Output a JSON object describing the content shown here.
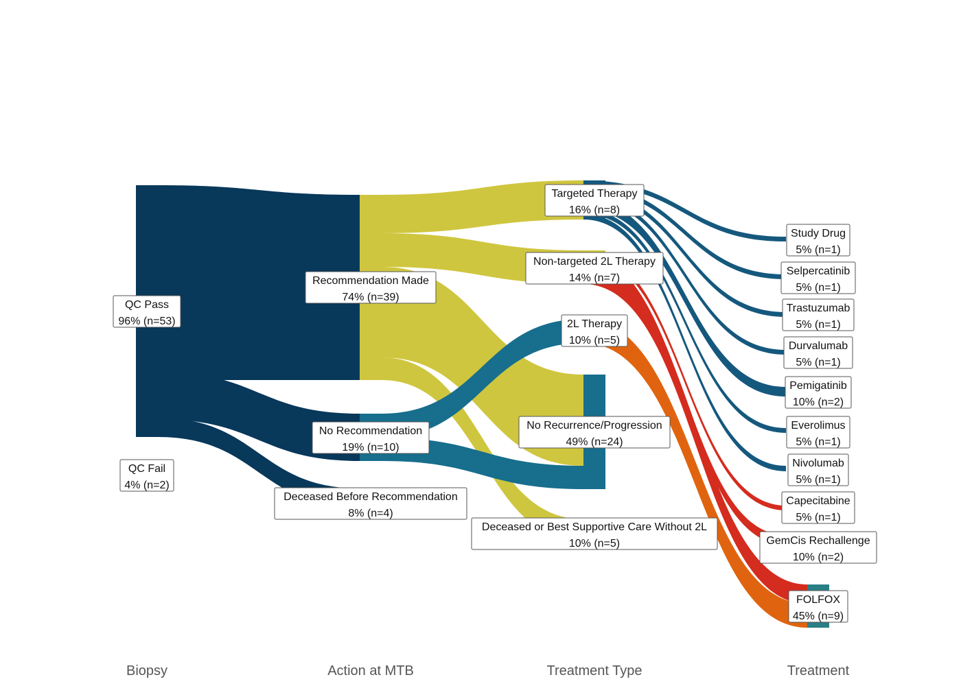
{
  "axis": {
    "biopsy": "Biopsy",
    "action": "Action at MTB",
    "treatment_type": "Treatment Type",
    "treatment": "Treatment"
  },
  "colors": {
    "navy": "#08385A",
    "olive": "#CFC63F",
    "teal": "#176E8D",
    "blue": "#15587E",
    "red": "#D42C1E",
    "orange": "#E0640F",
    "folfox_teal": "#2A7F86"
  },
  "nodes": {
    "qc_pass": {
      "line1": "QC Pass",
      "line2": "96% (n=53)"
    },
    "qc_fail": {
      "line1": "QC Fail",
      "line2": "4% (n=2)"
    },
    "rec_made": {
      "line1": "Recommendation Made",
      "line2": "74% (n=39)"
    },
    "no_rec": {
      "line1": "No Recommendation",
      "line2": "19% (n=10)"
    },
    "deceased_before": {
      "line1": "Deceased Before Recommendation",
      "line2": "8% (n=4)"
    },
    "targeted": {
      "line1": "Targeted Therapy",
      "line2": "16% (n=8)"
    },
    "nontargeted": {
      "line1": "Non-targeted 2L Therapy",
      "line2": "14% (n=7)"
    },
    "l2": {
      "line1": "2L Therapy",
      "line2": "10% (n=5)"
    },
    "no_recurrence": {
      "line1": "No Recurrence/Progression",
      "line2": "49% (n=24)"
    },
    "deceased_bsc": {
      "line1": "Deceased or Best Supportive Care Without 2L",
      "line2": "10% (n=5)"
    },
    "study_drug": {
      "line1": "Study Drug",
      "line2": "5% (n=1)"
    },
    "selpercatinib": {
      "line1": "Selpercatinib",
      "line2": "5% (n=1)"
    },
    "trastuzumab": {
      "line1": "Trastuzumab",
      "line2": "5% (n=1)"
    },
    "durvalumab": {
      "line1": "Durvalumab",
      "line2": "5% (n=1)"
    },
    "pemigatinib": {
      "line1": "Pemigatinib",
      "line2": "10% (n=2)"
    },
    "everolimus": {
      "line1": "Everolimus",
      "line2": "5% (n=1)"
    },
    "nivolumab": {
      "line1": "Nivolumab",
      "line2": "5% (n=1)"
    },
    "capecitabine": {
      "line1": "Capecitabine",
      "line2": "5% (n=1)"
    },
    "gemcis": {
      "line1": "GemCis Rechallenge",
      "line2": "10% (n=2)"
    },
    "folfox": {
      "line1": "FOLFOX",
      "line2": "45% (n=9)"
    }
  },
  "chart_data": {
    "type": "sankey",
    "stages": [
      "Biopsy",
      "Action at MTB",
      "Treatment Type",
      "Treatment"
    ],
    "flows": [
      {
        "from": "QC Pass",
        "to": "Recommendation Made",
        "value": 39
      },
      {
        "from": "QC Pass",
        "to": "No Recommendation",
        "value": 10
      },
      {
        "from": "QC Pass",
        "to": "Deceased Before Recommendation",
        "value": 4
      },
      {
        "from": "Recommendation Made",
        "to": "Targeted Therapy",
        "value": 8
      },
      {
        "from": "Recommendation Made",
        "to": "Non-targeted 2L Therapy",
        "value": 7
      },
      {
        "from": "Recommendation Made",
        "to": "No Recurrence/Progression",
        "value": 19
      },
      {
        "from": "Recommendation Made",
        "to": "Deceased or Best Supportive Care Without 2L",
        "value": 5
      },
      {
        "from": "No Recommendation",
        "to": "2L Therapy",
        "value": 5
      },
      {
        "from": "No Recommendation",
        "to": "No Recurrence/Progression",
        "value": 5
      },
      {
        "from": "Targeted Therapy",
        "to": "Study Drug",
        "value": 1
      },
      {
        "from": "Targeted Therapy",
        "to": "Selpercatinib",
        "value": 1
      },
      {
        "from": "Targeted Therapy",
        "to": "Trastuzumab",
        "value": 1
      },
      {
        "from": "Targeted Therapy",
        "to": "Durvalumab",
        "value": 1
      },
      {
        "from": "Targeted Therapy",
        "to": "Pemigatinib",
        "value": 2
      },
      {
        "from": "Targeted Therapy",
        "to": "Everolimus",
        "value": 1
      },
      {
        "from": "Targeted Therapy",
        "to": "Nivolumab",
        "value": 1
      },
      {
        "from": "Non-targeted 2L Therapy",
        "to": "Capecitabine",
        "value": 1
      },
      {
        "from": "Non-targeted 2L Therapy",
        "to": "GemCis Rechallenge",
        "value": 2
      },
      {
        "from": "Non-targeted 2L Therapy",
        "to": "FOLFOX",
        "value": 4
      },
      {
        "from": "2L Therapy",
        "to": "FOLFOX",
        "value": 5
      }
    ]
  }
}
